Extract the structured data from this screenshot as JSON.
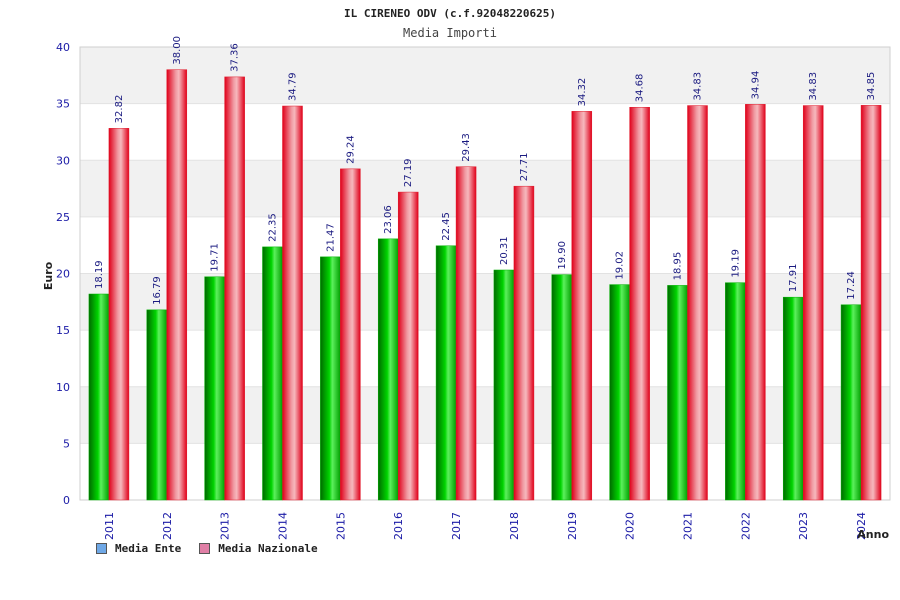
{
  "colors": {
    "plot_band": "#f1f1f1",
    "plot_bg": "#ffffff",
    "series1": "#00b200",
    "series2": "#e01a2a",
    "legend1": "#6fa8e6",
    "legend2": "#e07fa6"
  },
  "chart_data": {
    "type": "bar",
    "title": "IL CIRENEO ODV (c.f.92048220625)",
    "subtitle": "Media Importi",
    "xlabel": "Anno",
    "ylabel": "Euro",
    "ylim": [
      0,
      40
    ],
    "yticks": [
      0,
      5,
      10,
      15,
      20,
      25,
      30,
      35,
      40
    ],
    "grid": true,
    "legend_position": "bottom-left",
    "categories": [
      "2011",
      "2012",
      "2013",
      "2014",
      "2015",
      "2016",
      "2017",
      "2018",
      "2019",
      "2020",
      "2021",
      "2022",
      "2023",
      "2024"
    ],
    "series": [
      {
        "name": "Media Ente",
        "values": [
          18.19,
          16.79,
          19.71,
          22.35,
          21.47,
          23.06,
          22.45,
          20.31,
          19.9,
          19.02,
          18.95,
          19.19,
          17.91,
          17.24
        ]
      },
      {
        "name": "Media Nazionale",
        "values": [
          32.82,
          38.0,
          37.36,
          34.79,
          29.24,
          27.19,
          29.43,
          27.71,
          34.32,
          34.68,
          34.83,
          34.94,
          34.83,
          34.85
        ]
      }
    ]
  }
}
